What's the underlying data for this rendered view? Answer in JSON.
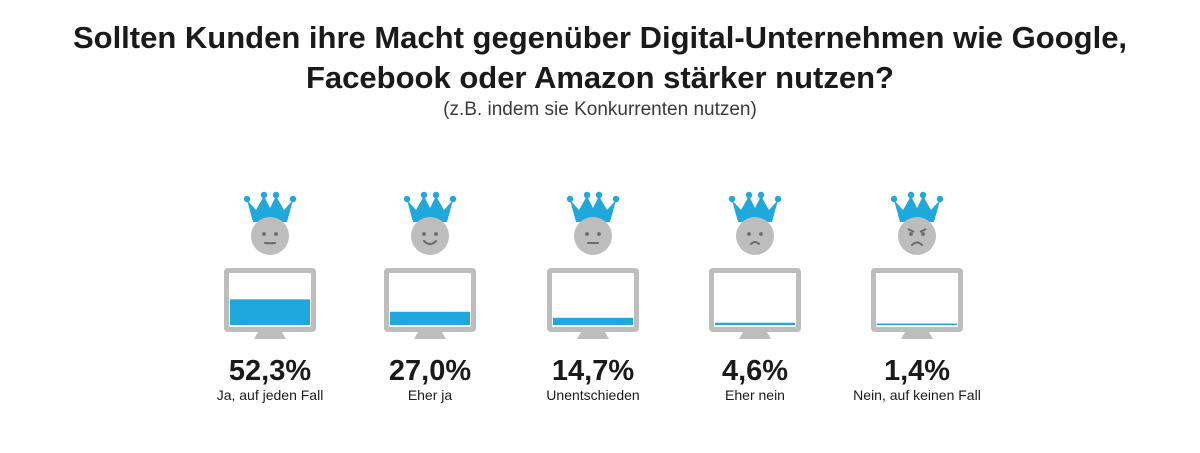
{
  "chart_data": {
    "type": "bar",
    "title": "Sollten Kunden ihre Macht gegenüber Digital-Unternehmen wie Google, Facebook oder Amazon stärker nutzen?",
    "subtitle": "(z.B. indem sie Konkurrenten nutzen)",
    "categories": [
      "Ja, auf jeden Fall",
      "Eher ja",
      "Unentschieden",
      "Eher nein",
      "Nein, auf keinen Fall"
    ],
    "values": [
      52.3,
      27.0,
      14.7,
      4.6,
      1.4
    ],
    "value_labels": [
      "52,3%",
      "27,0%",
      "14,7%",
      "4,6%",
      "1,4%"
    ],
    "moods": [
      "neutral",
      "smile",
      "flat",
      "sad",
      "angry"
    ],
    "ylim": [
      0,
      100
    ]
  },
  "colors": {
    "accent": "#1fa8dc",
    "gray": "#bdbdbd",
    "text": "#1a1a1a"
  },
  "icons": {
    "crown": "crown-icon",
    "face": "face-icon",
    "monitor": "monitor-icon"
  }
}
